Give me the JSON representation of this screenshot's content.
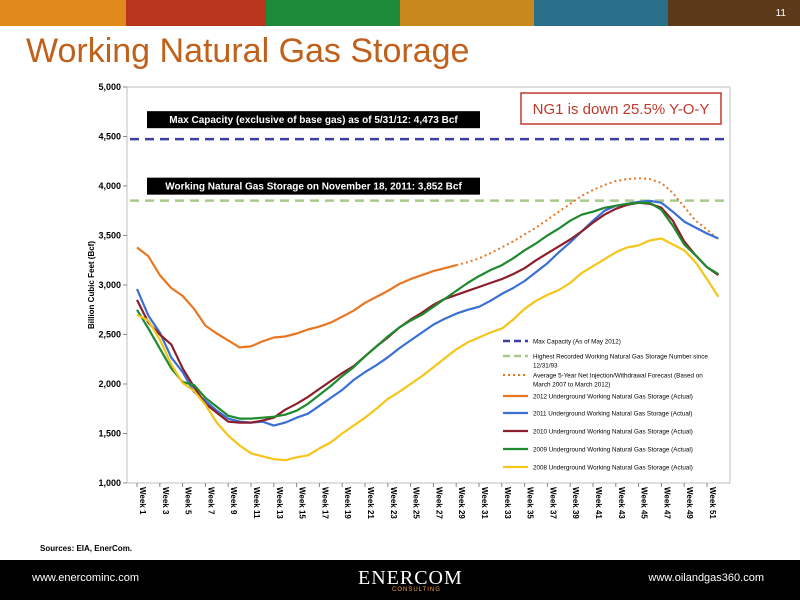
{
  "page": {
    "number": "11",
    "title": "Working Natural Gas Storage",
    "bar_colors": [
      "#e08a1e",
      "#b8361b",
      "#1d8a3a",
      "#c8881c",
      "#2a6f8a",
      "#5b3a1a",
      "#e08a1e"
    ]
  },
  "callout": {
    "text": "NG1 is down 25.5% Y-O-Y",
    "color": "#c0392b"
  },
  "sources": "Sources: EIA, EnerCom.",
  "footer": {
    "left": "www.enercominc.com",
    "right": "www.oilandgas360.com",
    "logo_main": "ENERCOM",
    "logo_sub": "CONSULTING"
  },
  "chart_data": {
    "type": "line",
    "ylabel": "Billion Cubic Feet (Bcf)",
    "ylim": [
      1000,
      5000
    ],
    "yticks": [
      "1,000",
      "1,500",
      "2,000",
      "2,500",
      "3,000",
      "3,500",
      "4,000",
      "4,500",
      "5,000"
    ],
    "x_labels": [
      "Week 1",
      "Week 3",
      "Week 5",
      "Week 7",
      "Week 9",
      "Week 11",
      "Week 13",
      "Week 15",
      "Week 17",
      "Week 19",
      "Week 21",
      "Week 23",
      "Week 25",
      "Week 27",
      "Week 29",
      "Week 31",
      "Week 33",
      "Week 35",
      "Week 37",
      "Week 39",
      "Week 41",
      "Week 43",
      "Week 45",
      "Week 47",
      "Week 49",
      "Week 51"
    ],
    "reference_lines": [
      {
        "name": "Max Capacity (As of May 2012)",
        "value": 4473,
        "label": "Max Capacity (exclusive of base gas) as of 5/31/12: 4,473 Bcf",
        "color": "#3b3fa6"
      },
      {
        "name": "Highest Recorded Working Natural Gas Storage Number since 12/31/93",
        "value": 3852,
        "label": "Working Natural Gas Storage on November 18, 2011: 3,852 Bcf",
        "color": "#a8c98a"
      }
    ],
    "series": [
      {
        "name": "Average 5-Year Net Injection/Withdrawal Forecast (Based on March 2007 to March 2012)",
        "color": "#e87722",
        "dashed": true,
        "x": [
          29,
          30,
          31,
          32,
          33,
          34,
          35,
          36,
          37,
          38,
          39,
          40,
          41,
          42,
          43,
          44,
          45,
          46,
          47,
          48,
          49,
          50,
          51,
          52
        ],
        "values": [
          3200,
          3230,
          3270,
          3320,
          3380,
          3440,
          3510,
          3580,
          3660,
          3740,
          3820,
          3900,
          3960,
          4010,
          4050,
          4070,
          4080,
          4070,
          4030,
          3930,
          3790,
          3650,
          3560,
          3460
        ]
      },
      {
        "name": "2012 Underground Working Natural Gas Storage (Actual)",
        "color": "#e87722",
        "dashed": false,
        "x": [
          1,
          2,
          3,
          4,
          5,
          6,
          7,
          8,
          9,
          10,
          11,
          12,
          13,
          14,
          15,
          16,
          17,
          18,
          19,
          20,
          21,
          22,
          23,
          24,
          25,
          26,
          27,
          28,
          29
        ],
        "values": [
          3380,
          3290,
          3100,
          2970,
          2890,
          2760,
          2590,
          2510,
          2440,
          2370,
          2380,
          2430,
          2470,
          2480,
          2510,
          2550,
          2580,
          2620,
          2680,
          2740,
          2820,
          2880,
          2940,
          3010,
          3060,
          3100,
          3140,
          3170,
          3200
        ]
      },
      {
        "name": "2011 Underground Working Natural Gas Storage (Actual)",
        "color": "#3a6fd6",
        "dashed": false,
        "x": [
          1,
          2,
          3,
          4,
          5,
          6,
          7,
          8,
          9,
          10,
          11,
          12,
          13,
          14,
          15,
          16,
          17,
          18,
          19,
          20,
          21,
          22,
          23,
          24,
          25,
          26,
          27,
          28,
          29,
          30,
          31,
          32,
          33,
          34,
          35,
          36,
          37,
          38,
          39,
          40,
          41,
          42,
          43,
          44,
          45,
          46,
          47,
          48,
          49,
          50,
          51,
          52
        ],
        "values": [
          2960,
          2690,
          2520,
          2270,
          2120,
          1920,
          1830,
          1730,
          1650,
          1620,
          1610,
          1620,
          1580,
          1610,
          1660,
          1700,
          1780,
          1860,
          1940,
          2040,
          2120,
          2190,
          2270,
          2360,
          2440,
          2520,
          2600,
          2660,
          2710,
          2750,
          2780,
          2840,
          2910,
          2970,
          3040,
          3130,
          3220,
          3330,
          3430,
          3540,
          3650,
          3750,
          3800,
          3820,
          3840,
          3850,
          3830,
          3740,
          3640,
          3580,
          3520,
          3470
        ]
      },
      {
        "name": "2010 Underground Working Natural Gas Storage (Actual)",
        "color": "#8b1f2b",
        "dashed": false,
        "x": [
          1,
          2,
          3,
          4,
          5,
          6,
          7,
          8,
          9,
          10,
          11,
          12,
          13,
          14,
          15,
          16,
          17,
          18,
          19,
          20,
          21,
          22,
          23,
          24,
          25,
          26,
          27,
          28,
          29,
          30,
          31,
          32,
          33,
          34,
          35,
          36,
          37,
          38,
          39,
          40,
          41,
          42,
          43,
          44,
          45,
          46,
          47,
          48,
          49,
          50,
          51,
          52
        ],
        "values": [
          2850,
          2620,
          2500,
          2400,
          2160,
          1970,
          1800,
          1710,
          1620,
          1610,
          1610,
          1630,
          1660,
          1740,
          1800,
          1870,
          1950,
          2030,
          2110,
          2180,
          2280,
          2380,
          2470,
          2570,
          2650,
          2720,
          2800,
          2860,
          2900,
          2940,
          2980,
          3020,
          3060,
          3110,
          3170,
          3250,
          3320,
          3390,
          3460,
          3540,
          3630,
          3710,
          3770,
          3810,
          3830,
          3820,
          3780,
          3650,
          3440,
          3300,
          3180,
          3100
        ]
      },
      {
        "name": "2009 Underground Working Natural Gas Storage (Actual)",
        "color": "#1e8a2e",
        "dashed": false,
        "x": [
          1,
          2,
          3,
          4,
          5,
          6,
          7,
          8,
          9,
          10,
          11,
          12,
          13,
          14,
          15,
          16,
          17,
          18,
          19,
          20,
          21,
          22,
          23,
          24,
          25,
          26,
          27,
          28,
          29,
          30,
          31,
          32,
          33,
          34,
          35,
          36,
          37,
          38,
          39,
          40,
          41,
          42,
          43,
          44,
          45,
          46,
          47,
          48,
          49,
          50,
          51,
          52
        ],
        "values": [
          2750,
          2560,
          2360,
          2160,
          2020,
          1990,
          1860,
          1770,
          1680,
          1650,
          1650,
          1660,
          1670,
          1690,
          1730,
          1800,
          1890,
          1980,
          2080,
          2170,
          2280,
          2380,
          2480,
          2570,
          2640,
          2700,
          2780,
          2860,
          2940,
          3020,
          3090,
          3150,
          3200,
          3270,
          3350,
          3420,
          3500,
          3570,
          3650,
          3710,
          3740,
          3780,
          3800,
          3820,
          3830,
          3830,
          3760,
          3600,
          3410,
          3300,
          3180,
          3110
        ]
      },
      {
        "name": "2008 Underground Working Natural Gas Storage (Actual)",
        "color": "#f5c518",
        "dashed": false,
        "x": [
          1,
          2,
          3,
          4,
          5,
          6,
          7,
          8,
          9,
          10,
          11,
          12,
          13,
          14,
          15,
          16,
          17,
          18,
          19,
          20,
          21,
          22,
          23,
          24,
          25,
          26,
          27,
          28,
          29,
          30,
          31,
          32,
          33,
          34,
          35,
          36,
          37,
          38,
          39,
          40,
          41,
          42,
          43,
          44,
          45,
          46,
          47,
          48,
          49,
          50,
          51,
          52
        ],
        "values": [
          2700,
          2640,
          2450,
          2200,
          2010,
          1930,
          1790,
          1610,
          1480,
          1380,
          1300,
          1270,
          1240,
          1230,
          1260,
          1280,
          1350,
          1410,
          1500,
          1580,
          1660,
          1750,
          1850,
          1920,
          2000,
          2080,
          2170,
          2260,
          2350,
          2420,
          2470,
          2520,
          2560,
          2650,
          2760,
          2840,
          2900,
          2950,
          3020,
          3120,
          3190,
          3260,
          3330,
          3380,
          3400,
          3450,
          3470,
          3410,
          3350,
          3230,
          3060,
          2880
        ]
      }
    ]
  }
}
